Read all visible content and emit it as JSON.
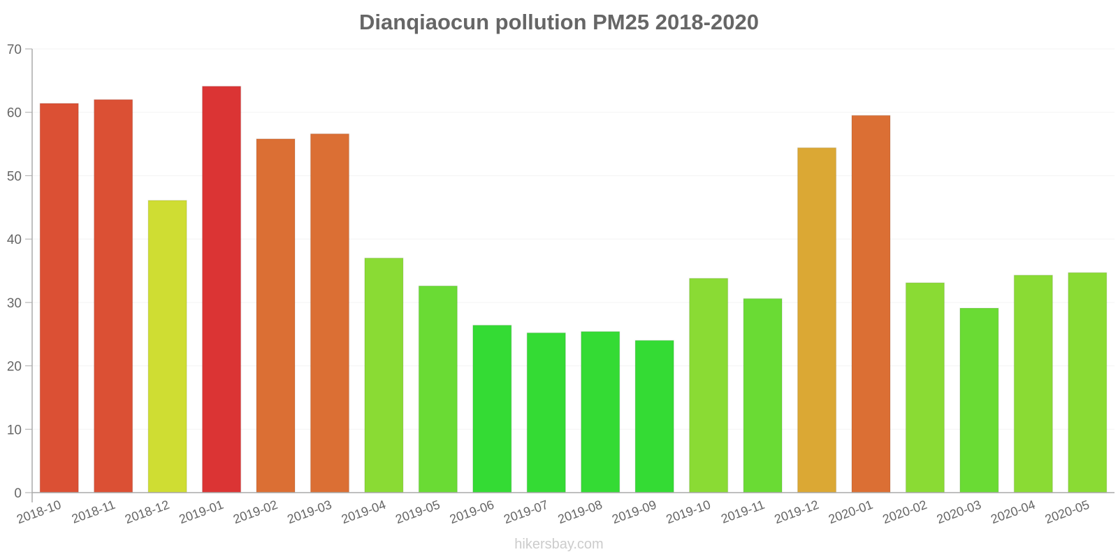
{
  "chart_data": {
    "type": "bar",
    "title": "Dianqiaocun pollution PM25 2018-2020",
    "xlabel": "",
    "ylabel": "",
    "ylim": [
      0,
      70
    ],
    "yticks": [
      0,
      10,
      20,
      30,
      40,
      50,
      60,
      70
    ],
    "grid": true,
    "legend": null,
    "categories": [
      "2018-10",
      "2018-11",
      "2018-12",
      "2019-01",
      "2019-02",
      "2019-03",
      "2019-04",
      "2019-05",
      "2019-06",
      "2019-07",
      "2019-08",
      "2019-09",
      "2019-10",
      "2019-11",
      "2019-12",
      "2020-01",
      "2020-02",
      "2020-03",
      "2020-04",
      "2020-05"
    ],
    "values": [
      61.4,
      62.0,
      46.1,
      64.1,
      55.8,
      56.6,
      37.0,
      32.6,
      26.4,
      25.2,
      25.4,
      24.0,
      33.8,
      30.6,
      54.4,
      59.5,
      33.1,
      29.1,
      34.3,
      34.7
    ],
    "colors": [
      "#DB5034",
      "#DB5034",
      "#CFDD33",
      "#DB3434",
      "#DB6F34",
      "#DB6F34",
      "#8ADB34",
      "#6ADB34",
      "#34DB34",
      "#34DB34",
      "#34DB34",
      "#34DB34",
      "#8ADB34",
      "#6ADB34",
      "#DBA834",
      "#DB6F34",
      "#8ADB34",
      "#6ADB34",
      "#8ADB34",
      "#8ADB34"
    ]
  },
  "footer": {
    "text": "hikersbay.com"
  }
}
